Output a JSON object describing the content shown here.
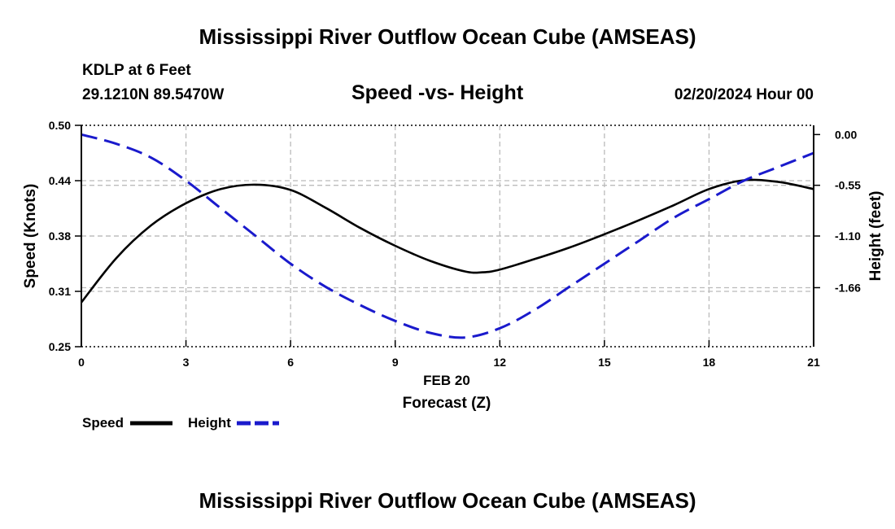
{
  "page": {
    "title_top": "Mississippi River Outflow Ocean Cube (AMSEAS)",
    "title_bottom": "Mississippi River Outflow Ocean Cube (AMSEAS)",
    "station": "KDLP at 6 Feet",
    "coordinates": "29.1210N  89.5470W",
    "date_label": "02/20/2024 Hour 00"
  },
  "legend": {
    "speed_label": "Speed",
    "height_label": "Height"
  },
  "chart_data": {
    "type": "line",
    "title": "Speed -vs- Height",
    "xlabel": "Forecast (Z)",
    "xlabel_date": "FEB 20",
    "ylabel_left": "Speed (Knots)",
    "ylabel_right": "Height (feet)",
    "xlim": [
      0,
      21
    ],
    "ylim_left": [
      0.25,
      0.5
    ],
    "ylim_right": [
      -2.3,
      0.1
    ],
    "x_ticks": [
      0,
      3,
      6,
      9,
      12,
      15,
      18,
      21
    ],
    "x_tick_labels": [
      "0",
      "3",
      "6",
      "9",
      "12",
      "15",
      "18",
      "21"
    ],
    "y_left_ticks": [
      0.25,
      0.3125,
      0.375,
      0.4375,
      0.5
    ],
    "y_left_tick_labels": [
      "0.25",
      "0.31",
      "0.38",
      "0.44",
      "0.50"
    ],
    "y_right_ticks": [
      0.0,
      -0.55,
      -1.1,
      -1.66
    ],
    "y_right_tick_labels": [
      "0.00",
      "-0.55",
      "-1.10",
      "-1.66"
    ],
    "grid": true,
    "colors": {
      "speed": "#000000",
      "height": "#1a1acc",
      "grid": "#bbbbbb"
    },
    "series": [
      {
        "name": "Speed",
        "axis": "left",
        "x": [
          0,
          1,
          2,
          3,
          4,
          5,
          6,
          7,
          8,
          9,
          10,
          11,
          11.5,
          12,
          13,
          14,
          15,
          16,
          17,
          18,
          19,
          20,
          21
        ],
        "values": [
          0.3,
          0.35,
          0.387,
          0.412,
          0.428,
          0.433,
          0.427,
          0.407,
          0.384,
          0.364,
          0.347,
          0.335,
          0.334,
          0.337,
          0.349,
          0.362,
          0.377,
          0.393,
          0.41,
          0.428,
          0.438,
          0.436,
          0.428
        ]
      },
      {
        "name": "Height",
        "axis": "right",
        "x": [
          0,
          1,
          2,
          3,
          4,
          5,
          6,
          7,
          8,
          9,
          10,
          11,
          12,
          13,
          14,
          15,
          16,
          17,
          18,
          19,
          20,
          21
        ],
        "values": [
          0.0,
          -0.1,
          -0.25,
          -0.5,
          -0.8,
          -1.1,
          -1.4,
          -1.65,
          -1.85,
          -2.02,
          -2.15,
          -2.2,
          -2.1,
          -1.9,
          -1.65,
          -1.4,
          -1.15,
          -0.9,
          -0.7,
          -0.5,
          -0.35,
          -0.2
        ]
      }
    ]
  }
}
